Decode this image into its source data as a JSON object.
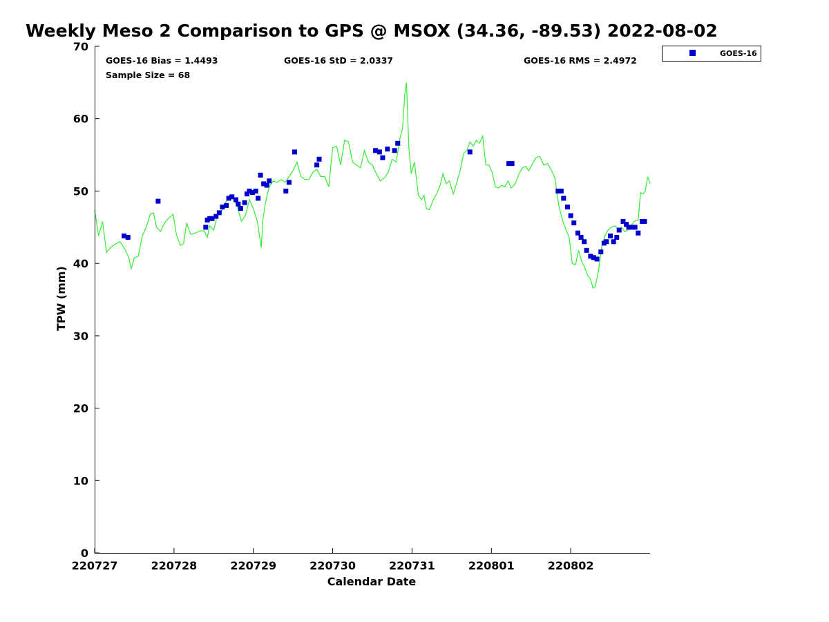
{
  "chart_data": {
    "type": "scatter",
    "title": "Weekly Meso 2 Comparison to GPS @ MSOX (34.36, -89.53) 2022-08-02",
    "xlabel": "Calendar Date",
    "ylabel": "TPW (mm)",
    "xlim": [
      0,
      7.0
    ],
    "ylim": [
      0,
      70
    ],
    "yticks": [
      0,
      10,
      20,
      30,
      40,
      50,
      60,
      70
    ],
    "xticks": [
      {
        "x": 0,
        "label": "220727"
      },
      {
        "x": 1,
        "label": "220728"
      },
      {
        "x": 2,
        "label": "220729"
      },
      {
        "x": 3,
        "label": "220730"
      },
      {
        "x": 4,
        "label": "220731"
      },
      {
        "x": 5,
        "label": "220801"
      },
      {
        "x": 6,
        "label": "220802"
      }
    ],
    "grid": false,
    "legend_position": "right",
    "stats": {
      "bias": "GOES-16 Bias = 1.4493",
      "std": "GOES-16 StD = 2.0337",
      "rms": "GOES-16 RMS = 2.4972",
      "sample": "Sample Size = 68"
    },
    "series": [
      {
        "name": "GOES-16",
        "kind": "scatter",
        "color": "#0000cc",
        "points": [
          [
            0.37,
            43.8
          ],
          [
            0.42,
            43.6
          ],
          [
            0.8,
            48.6
          ],
          [
            1.4,
            45.0
          ],
          [
            1.42,
            46.0
          ],
          [
            1.45,
            46.2
          ],
          [
            1.48,
            46.2
          ],
          [
            1.53,
            46.5
          ],
          [
            1.57,
            47.0
          ],
          [
            1.61,
            47.8
          ],
          [
            1.66,
            48.0
          ],
          [
            1.69,
            49.0
          ],
          [
            1.73,
            49.2
          ],
          [
            1.78,
            48.8
          ],
          [
            1.81,
            48.2
          ],
          [
            1.84,
            47.6
          ],
          [
            1.89,
            48.4
          ],
          [
            1.92,
            49.6
          ],
          [
            1.95,
            50.0
          ],
          [
            1.99,
            49.8
          ],
          [
            2.03,
            50.0
          ],
          [
            2.06,
            49.0
          ],
          [
            2.09,
            52.2
          ],
          [
            2.13,
            51.0
          ],
          [
            2.17,
            50.8
          ],
          [
            2.2,
            51.4
          ],
          [
            2.41,
            50.0
          ],
          [
            2.45,
            51.2
          ],
          [
            2.52,
            55.4
          ],
          [
            2.8,
            53.6
          ],
          [
            2.83,
            54.4
          ],
          [
            3.54,
            55.6
          ],
          [
            3.59,
            55.4
          ],
          [
            3.63,
            54.6
          ],
          [
            3.69,
            55.8
          ],
          [
            3.78,
            55.6
          ],
          [
            3.82,
            56.6
          ],
          [
            4.73,
            55.4
          ],
          [
            5.22,
            53.8
          ],
          [
            5.26,
            53.8
          ],
          [
            5.84,
            50.0
          ],
          [
            5.88,
            50.0
          ],
          [
            5.91,
            49.0
          ],
          [
            5.96,
            47.8
          ],
          [
            6.0,
            46.6
          ],
          [
            6.04,
            45.6
          ],
          [
            6.09,
            44.2
          ],
          [
            6.13,
            43.6
          ],
          [
            6.17,
            43.0
          ],
          [
            6.2,
            41.8
          ],
          [
            6.25,
            41.0
          ],
          [
            6.29,
            40.8
          ],
          [
            6.33,
            40.6
          ],
          [
            6.38,
            41.6
          ],
          [
            6.42,
            42.8
          ],
          [
            6.45,
            43.0
          ],
          [
            6.5,
            43.8
          ],
          [
            6.54,
            43.0
          ],
          [
            6.58,
            43.6
          ],
          [
            6.61,
            44.6
          ],
          [
            6.66,
            45.8
          ],
          [
            6.7,
            45.4
          ],
          [
            6.73,
            45.0
          ],
          [
            6.77,
            45.0
          ],
          [
            6.81,
            45.0
          ],
          [
            6.85,
            44.2
          ],
          [
            6.9,
            45.8
          ],
          [
            6.93,
            45.8
          ]
        ]
      },
      {
        "name": "",
        "kind": "line",
        "color": "#33ee33",
        "points": [
          [
            0.0,
            47.4
          ],
          [
            0.05,
            43.8
          ],
          [
            0.1,
            45.8
          ],
          [
            0.15,
            41.5
          ],
          [
            0.2,
            42.2
          ],
          [
            0.25,
            42.6
          ],
          [
            0.32,
            43.0
          ],
          [
            0.38,
            42.0
          ],
          [
            0.43,
            40.8
          ],
          [
            0.46,
            39.2
          ],
          [
            0.5,
            40.8
          ],
          [
            0.55,
            41.0
          ],
          [
            0.6,
            43.8
          ],
          [
            0.65,
            45.0
          ],
          [
            0.7,
            46.8
          ],
          [
            0.74,
            47.0
          ],
          [
            0.78,
            45.0
          ],
          [
            0.83,
            44.4
          ],
          [
            0.88,
            45.6
          ],
          [
            0.93,
            46.2
          ],
          [
            0.99,
            46.8
          ],
          [
            1.03,
            44.0
          ],
          [
            1.08,
            42.5
          ],
          [
            1.12,
            42.7
          ],
          [
            1.16,
            45.6
          ],
          [
            1.21,
            44.0
          ],
          [
            1.27,
            44.2
          ],
          [
            1.33,
            44.5
          ],
          [
            1.38,
            44.5
          ],
          [
            1.42,
            43.6
          ],
          [
            1.45,
            45.2
          ],
          [
            1.5,
            44.6
          ],
          [
            1.55,
            46.8
          ],
          [
            1.6,
            47.2
          ],
          [
            1.65,
            48.4
          ],
          [
            1.7,
            49.4
          ],
          [
            1.75,
            49.0
          ],
          [
            1.8,
            47.8
          ],
          [
            1.85,
            45.8
          ],
          [
            1.9,
            46.6
          ],
          [
            1.95,
            48.8
          ],
          [
            2.0,
            47.6
          ],
          [
            2.05,
            45.8
          ],
          [
            2.1,
            42.2
          ],
          [
            2.12,
            46.0
          ],
          [
            2.15,
            48.2
          ],
          [
            2.2,
            50.6
          ],
          [
            2.25,
            51.4
          ],
          [
            2.3,
            51.2
          ],
          [
            2.35,
            51.6
          ],
          [
            2.4,
            51.2
          ],
          [
            2.45,
            52.0
          ],
          [
            2.5,
            52.8
          ],
          [
            2.55,
            54.0
          ],
          [
            2.6,
            52.0
          ],
          [
            2.65,
            51.6
          ],
          [
            2.7,
            51.6
          ],
          [
            2.75,
            52.6
          ],
          [
            2.8,
            53.0
          ],
          [
            2.85,
            52.0
          ],
          [
            2.9,
            52.0
          ],
          [
            2.95,
            50.6
          ],
          [
            3.0,
            56.0
          ],
          [
            3.05,
            56.2
          ],
          [
            3.1,
            53.6
          ],
          [
            3.15,
            57.0
          ],
          [
            3.2,
            56.8
          ],
          [
            3.25,
            54.0
          ],
          [
            3.3,
            53.6
          ],
          [
            3.35,
            53.2
          ],
          [
            3.4,
            55.6
          ],
          [
            3.45,
            54.0
          ],
          [
            3.5,
            53.6
          ],
          [
            3.55,
            52.4
          ],
          [
            3.6,
            51.4
          ],
          [
            3.65,
            51.8
          ],
          [
            3.7,
            52.6
          ],
          [
            3.75,
            54.4
          ],
          [
            3.8,
            54.0
          ],
          [
            3.85,
            57.4
          ],
          [
            3.88,
            58.6
          ],
          [
            3.91,
            63.6
          ],
          [
            3.93,
            65.0
          ],
          [
            3.96,
            56.0
          ],
          [
            3.99,
            52.4
          ],
          [
            4.03,
            54.0
          ],
          [
            4.08,
            49.4
          ],
          [
            4.12,
            48.8
          ],
          [
            4.15,
            49.4
          ],
          [
            4.18,
            47.6
          ],
          [
            4.22,
            47.4
          ],
          [
            4.26,
            48.6
          ],
          [
            4.3,
            49.4
          ],
          [
            4.35,
            50.6
          ],
          [
            4.39,
            52.4
          ],
          [
            4.43,
            51.0
          ],
          [
            4.47,
            51.4
          ],
          [
            4.52,
            49.6
          ],
          [
            4.56,
            51.0
          ],
          [
            4.61,
            53.0
          ],
          [
            4.65,
            55.2
          ],
          [
            4.69,
            55.6
          ],
          [
            4.73,
            56.8
          ],
          [
            4.77,
            56.2
          ],
          [
            4.81,
            57.0
          ],
          [
            4.85,
            56.6
          ],
          [
            4.89,
            57.6
          ],
          [
            4.93,
            53.6
          ],
          [
            4.97,
            53.6
          ],
          [
            5.01,
            52.6
          ],
          [
            5.05,
            50.6
          ],
          [
            5.09,
            50.4
          ],
          [
            5.13,
            50.8
          ],
          [
            5.17,
            50.6
          ],
          [
            5.21,
            51.4
          ],
          [
            5.25,
            50.4
          ],
          [
            5.3,
            51.0
          ],
          [
            5.35,
            52.4
          ],
          [
            5.39,
            53.2
          ],
          [
            5.43,
            53.4
          ],
          [
            5.47,
            52.8
          ],
          [
            5.51,
            53.6
          ],
          [
            5.56,
            54.6
          ],
          [
            5.61,
            54.8
          ],
          [
            5.66,
            53.6
          ],
          [
            5.71,
            53.8
          ],
          [
            5.76,
            52.8
          ],
          [
            5.8,
            51.8
          ],
          [
            5.85,
            48.0
          ],
          [
            5.9,
            45.8
          ],
          [
            5.95,
            44.4
          ],
          [
            5.98,
            43.6
          ],
          [
            6.02,
            40.0
          ],
          [
            6.06,
            39.8
          ],
          [
            6.1,
            41.8
          ],
          [
            6.14,
            40.2
          ],
          [
            6.17,
            39.6
          ],
          [
            6.21,
            38.4
          ],
          [
            6.25,
            37.8
          ],
          [
            6.28,
            36.6
          ],
          [
            6.31,
            36.8
          ],
          [
            6.35,
            39.0
          ],
          [
            6.39,
            42.2
          ],
          [
            6.43,
            43.8
          ],
          [
            6.47,
            44.6
          ],
          [
            6.51,
            45.0
          ],
          [
            6.56,
            45.2
          ],
          [
            6.6,
            44.6
          ],
          [
            6.64,
            45.0
          ],
          [
            6.68,
            44.4
          ],
          [
            6.72,
            44.6
          ],
          [
            6.76,
            45.2
          ],
          [
            6.8,
            45.8
          ],
          [
            6.85,
            46.0
          ],
          [
            6.88,
            49.8
          ],
          [
            6.91,
            49.6
          ],
          [
            6.94,
            50.0
          ],
          [
            6.97,
            52.0
          ],
          [
            7.0,
            51.0
          ]
        ]
      }
    ]
  }
}
